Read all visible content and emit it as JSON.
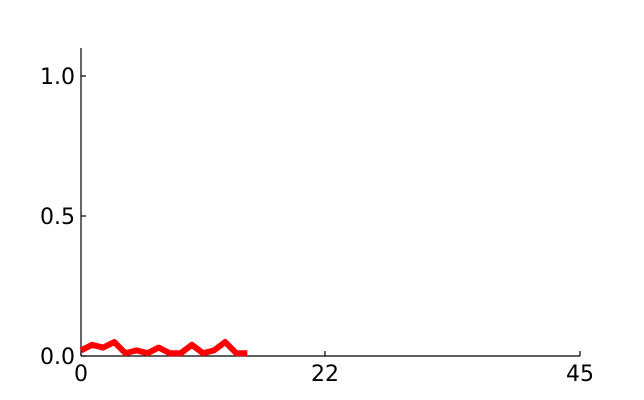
{
  "chart_data": {
    "type": "line",
    "title": "",
    "xlabel": "",
    "ylabel": "",
    "xlim": [
      0,
      45
    ],
    "ylim": [
      0,
      1.1
    ],
    "xticks": [
      0,
      22,
      45
    ],
    "xtick_labels": [
      "0",
      "22",
      "45"
    ],
    "yticks": [
      0,
      0.5,
      1.0
    ],
    "ytick_labels": [
      "0.0",
      "0.5",
      "1.0"
    ],
    "grid": false,
    "legend": "none",
    "spines": [
      "left",
      "bottom"
    ],
    "series": [
      {
        "color": "#ff0000",
        "x": [
          0,
          1,
          2,
          3,
          4,
          5,
          6,
          7,
          8,
          9,
          10,
          11,
          12,
          13,
          14,
          15
        ],
        "y": [
          0.02,
          0.04,
          0.03,
          0.05,
          0.01,
          0.02,
          0.01,
          0.03,
          0.01,
          0.01,
          0.04,
          0.01,
          0.02,
          0.05,
          0.01,
          0.01
        ]
      }
    ]
  }
}
